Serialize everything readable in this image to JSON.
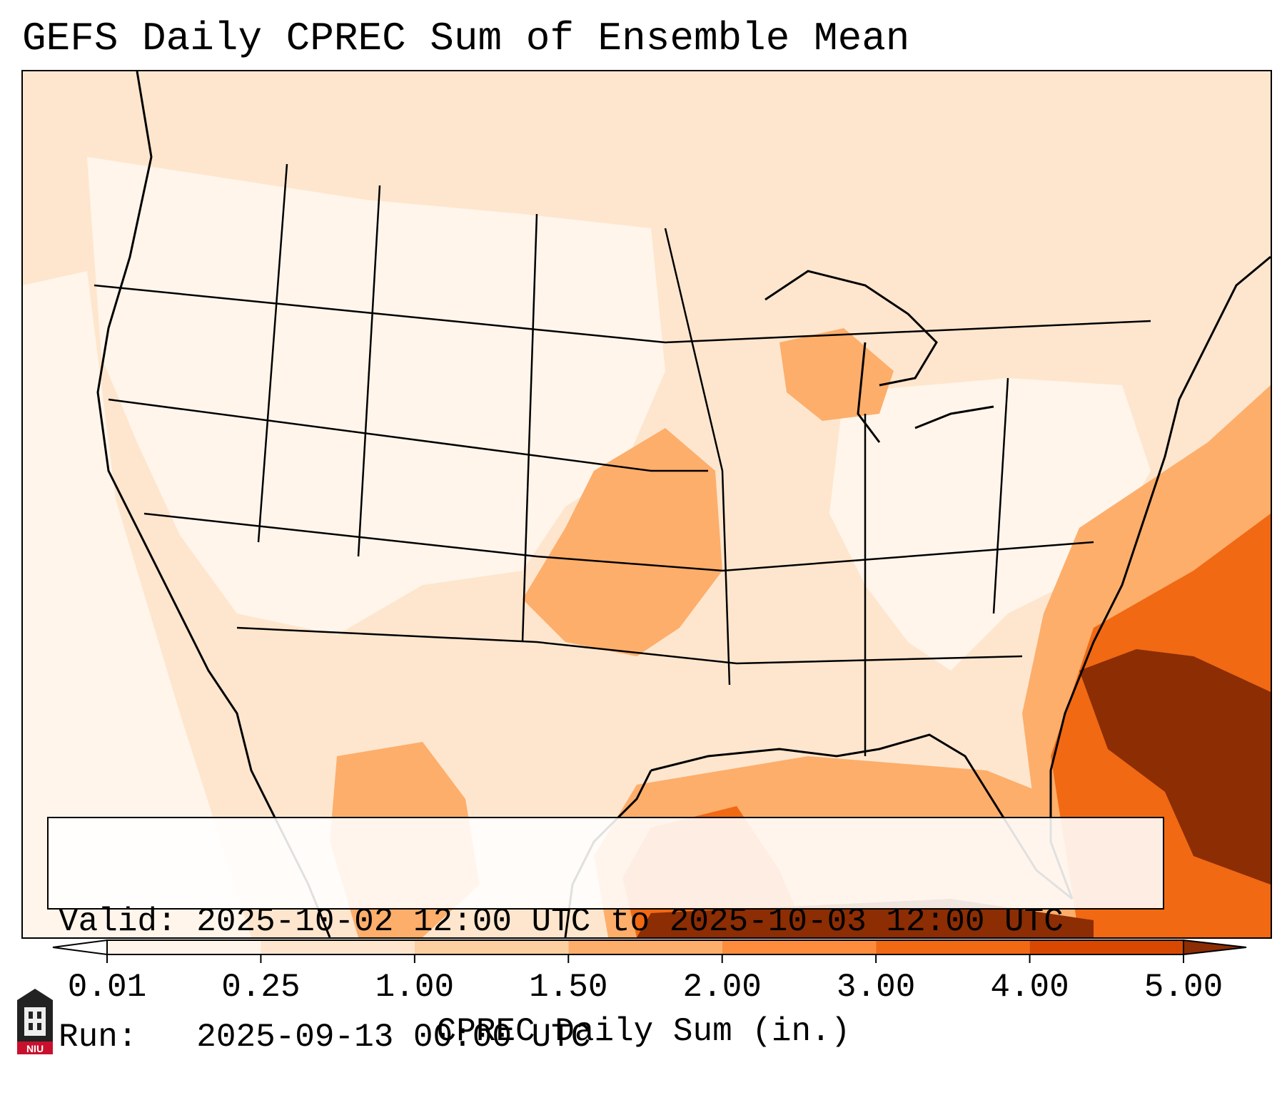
{
  "title": "GEFS Daily CPREC Sum of Ensemble Mean",
  "info": {
    "valid_label": "Valid:",
    "valid_value": "2025-10-02 12:00 UTC to 2025-10-03 12:00 UTC",
    "run_label": "Run:",
    "run_value": "2025-09-13 00:00 UTC"
  },
  "colorbar": {
    "label": "CPREC Daily Sum (in.)",
    "ticks": [
      "0.01",
      "0.25",
      "1.00",
      "1.50",
      "2.00",
      "3.00",
      "4.00",
      "5.00"
    ],
    "colors": [
      "#fff5eb",
      "#fee6ce",
      "#fdd0a2",
      "#fdae6b",
      "#fd8d3c",
      "#f16913",
      "#d94801",
      "#8c2d04"
    ],
    "under_color": "#ffffff",
    "over_color": "#8c2d04"
  },
  "logo": {
    "text": "NIU",
    "color": "#c8102e"
  }
}
